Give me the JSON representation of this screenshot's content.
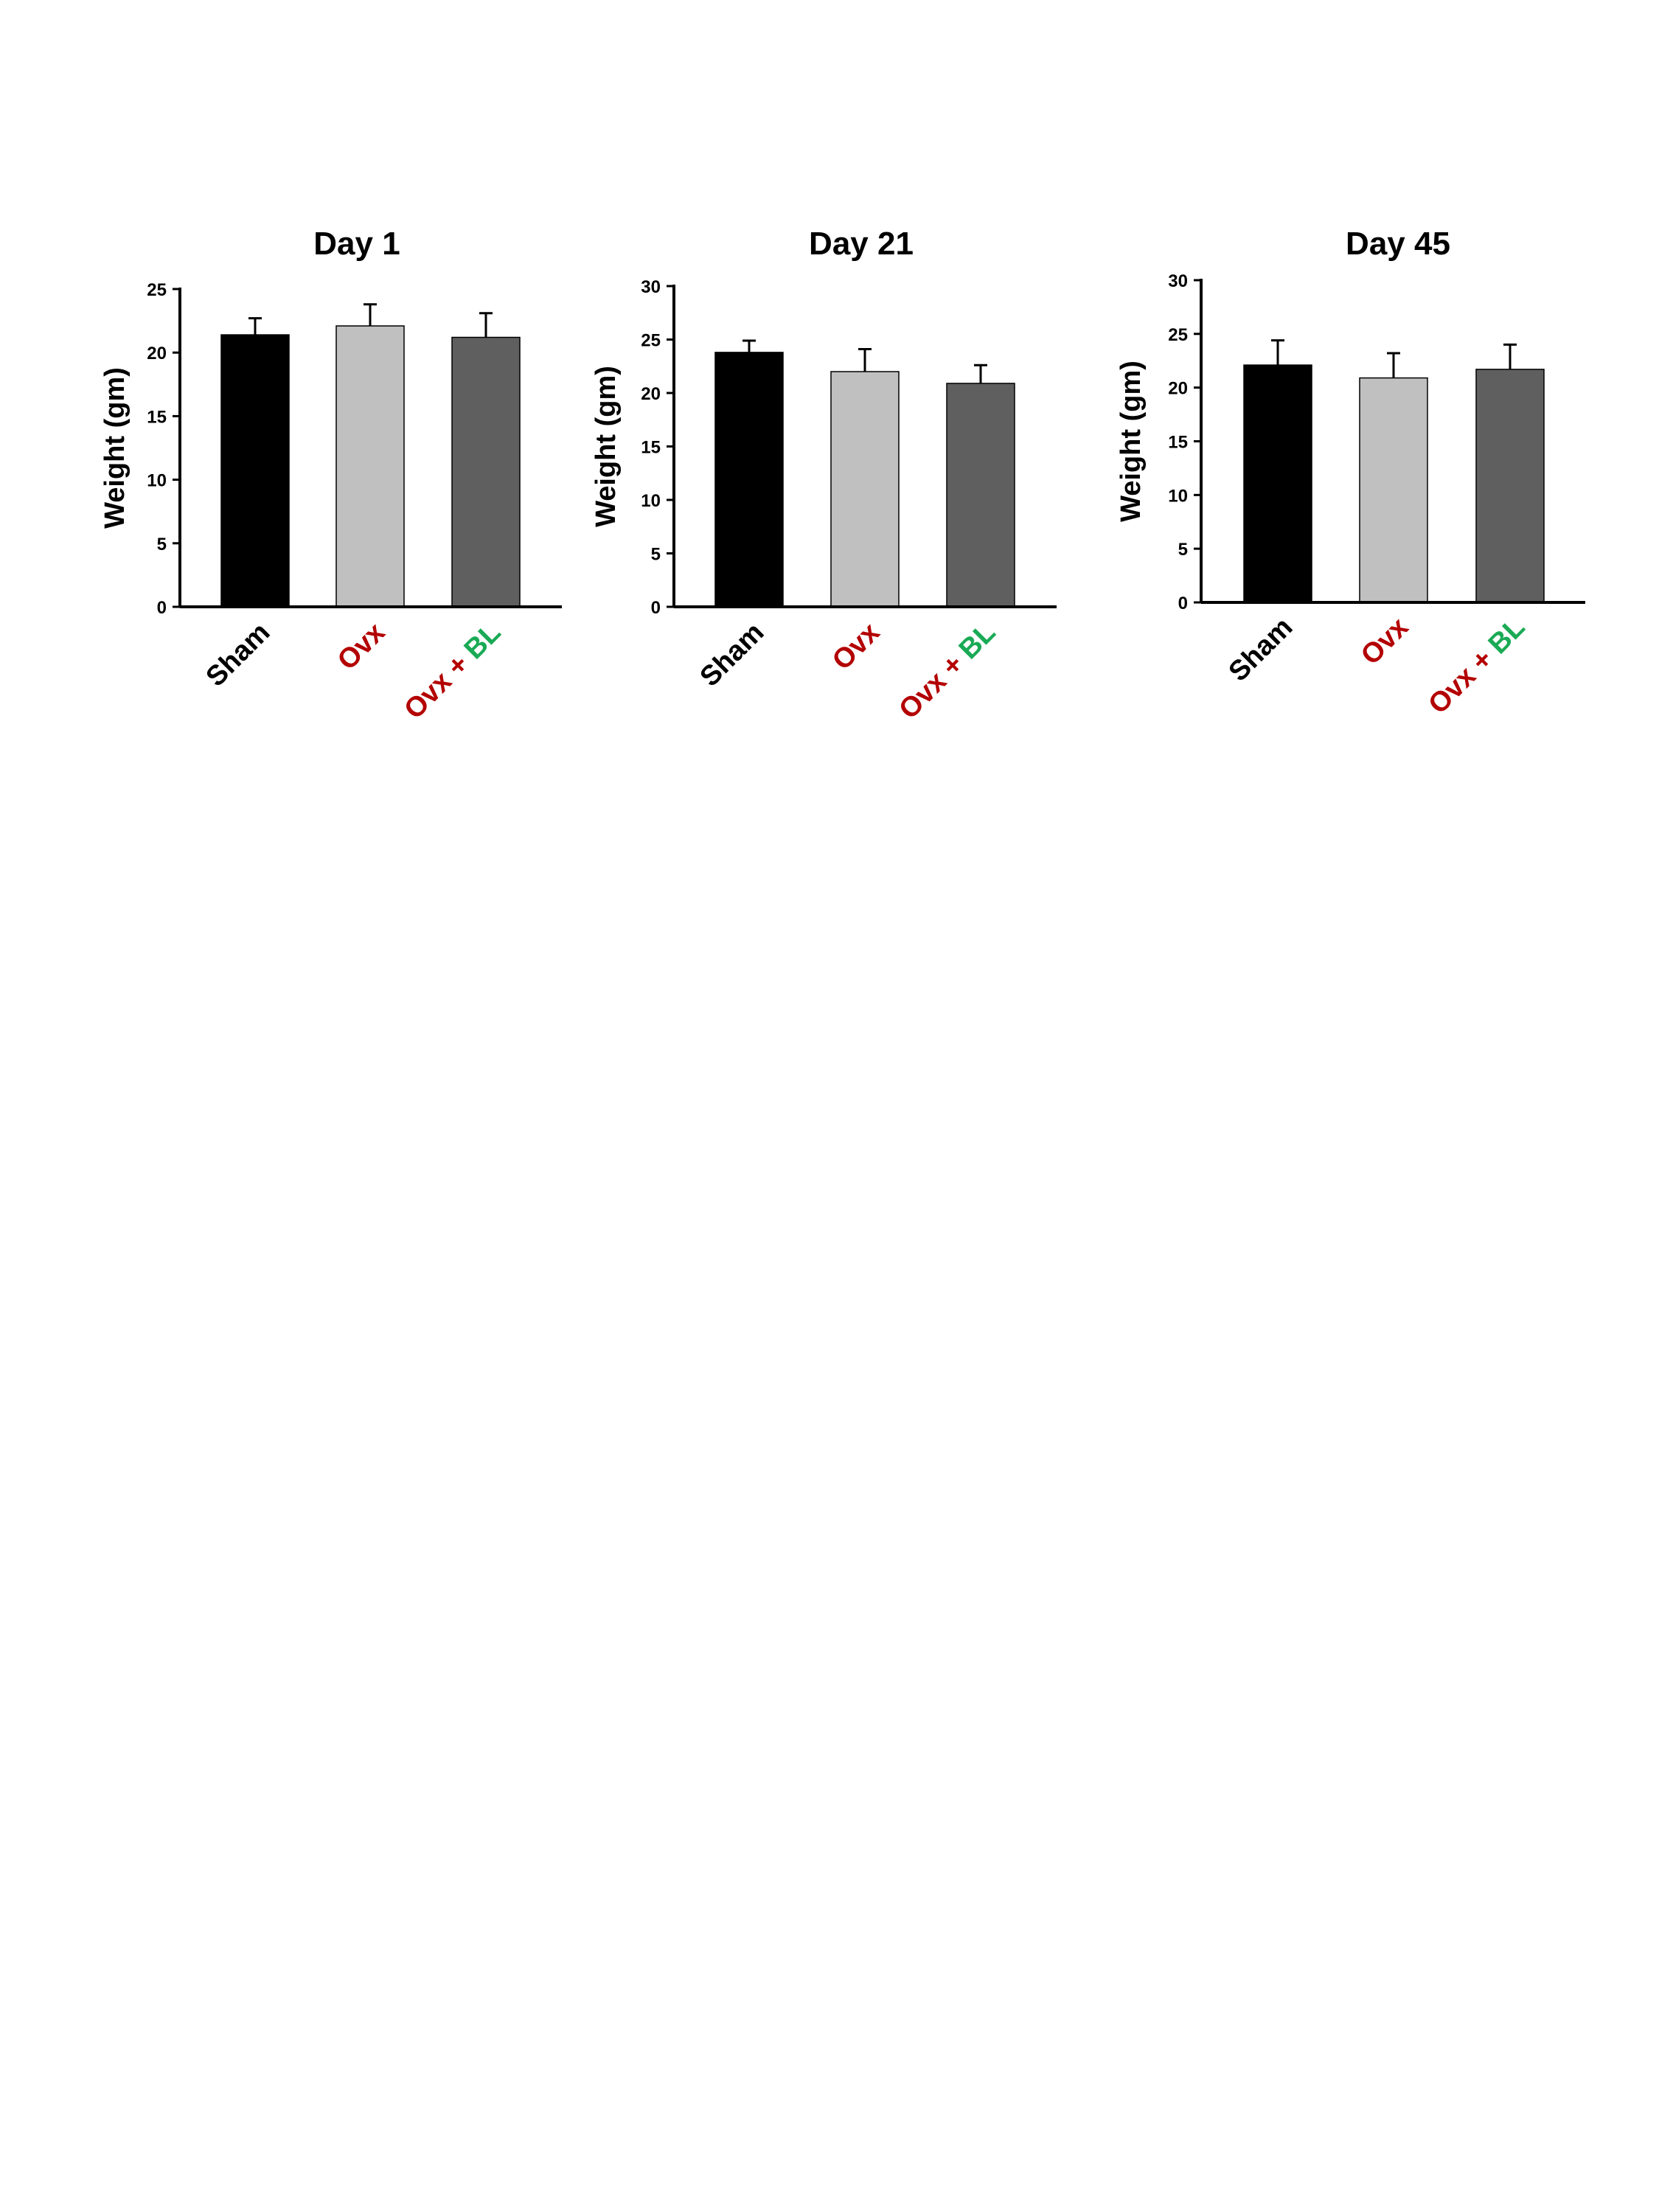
{
  "chart_data": [
    {
      "type": "bar",
      "title": "Day 1",
      "ylabel": "Weight (gm)",
      "xlabel": "",
      "categories": [
        "Sham",
        "Ovx",
        "Ovx + BL"
      ],
      "category_parts": [
        [
          {
            "text": "Sham",
            "color": "#000000"
          }
        ],
        [
          {
            "text": "Ovx",
            "color": "#b30000"
          }
        ],
        [
          {
            "text": "Ovx + ",
            "color": "#b30000"
          },
          {
            "text": "BL",
            "color": "#1aaa55"
          }
        ]
      ],
      "values": [
        21.4,
        22.1,
        21.2
      ],
      "errors": [
        1.3,
        1.7,
        1.9
      ],
      "bar_colors": [
        "#000000",
        "#c0c0c0",
        "#5f5f5f"
      ],
      "ylim": [
        0,
        25
      ],
      "yticks": [
        0,
        5,
        10,
        15,
        20,
        25
      ],
      "grid": false
    },
    {
      "type": "bar",
      "title": "Day 21",
      "ylabel": "Weight (gm)",
      "xlabel": "",
      "categories": [
        "Sham",
        "Ovx",
        "Ovx + BL"
      ],
      "category_parts": [
        [
          {
            "text": "Sham",
            "color": "#000000"
          }
        ],
        [
          {
            "text": "Ovx",
            "color": "#b30000"
          }
        ],
        [
          {
            "text": "Ovx + ",
            "color": "#b30000"
          },
          {
            "text": "BL",
            "color": "#1aaa55"
          }
        ]
      ],
      "values": [
        23.8,
        22.0,
        20.9
      ],
      "errors": [
        1.1,
        2.1,
        1.7
      ],
      "bar_colors": [
        "#000000",
        "#c0c0c0",
        "#5f5f5f"
      ],
      "ylim": [
        0,
        30
      ],
      "yticks": [
        0,
        5,
        10,
        15,
        20,
        25,
        30
      ],
      "grid": false
    },
    {
      "type": "bar",
      "title": "Day 45",
      "ylabel": "Weight (gm)",
      "xlabel": "",
      "categories": [
        "Sham",
        "Ovx",
        "Ovx + BL"
      ],
      "category_parts": [
        [
          {
            "text": "Sham",
            "color": "#000000"
          }
        ],
        [
          {
            "text": "Ovx",
            "color": "#b30000"
          }
        ],
        [
          {
            "text": "Ovx + ",
            "color": "#b30000"
          },
          {
            "text": "BL",
            "color": "#1aaa55"
          }
        ]
      ],
      "values": [
        22.1,
        20.9,
        21.7
      ],
      "errors": [
        2.3,
        2.3,
        2.3
      ],
      "bar_colors": [
        "#000000",
        "#c0c0c0",
        "#5f5f5f"
      ],
      "ylim": [
        0,
        30
      ],
      "yticks": [
        0,
        5,
        10,
        15,
        20,
        25,
        30
      ],
      "grid": false
    }
  ]
}
